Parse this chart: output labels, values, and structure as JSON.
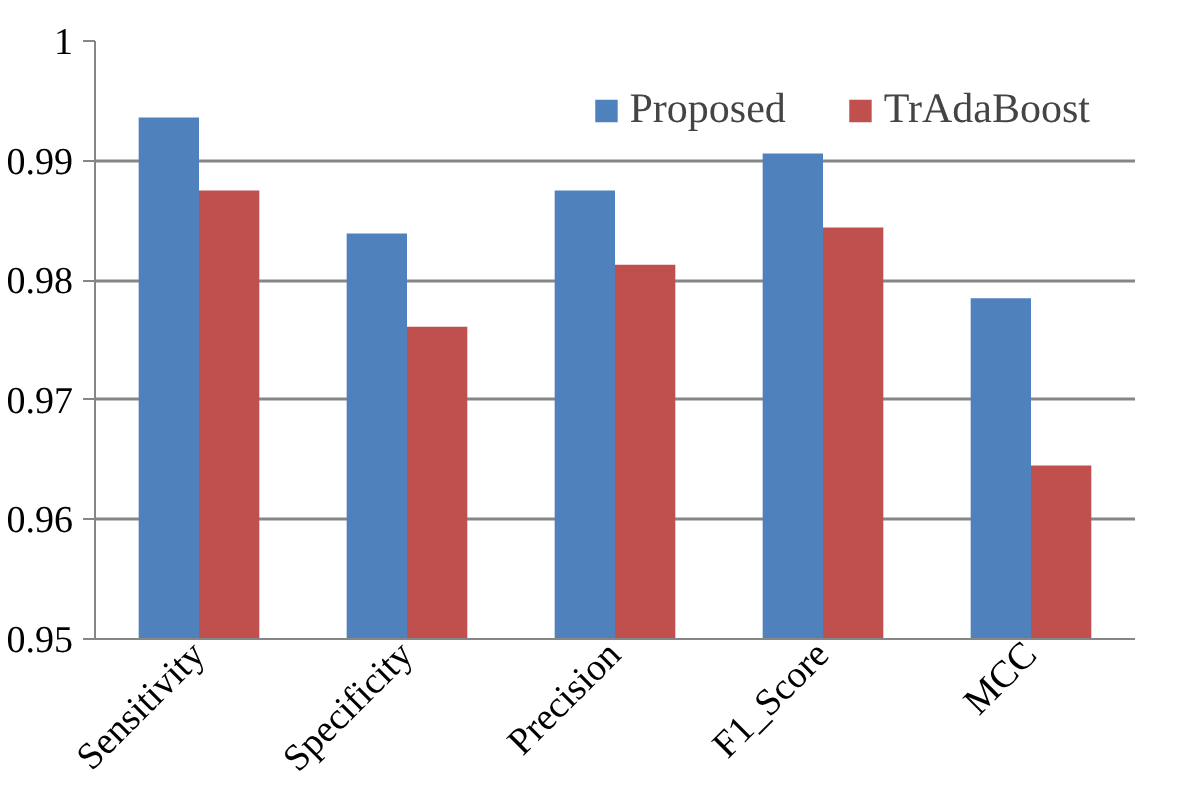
{
  "chart_data": {
    "type": "bar",
    "categories": [
      "Sensitivity",
      "Specificity",
      "Precision",
      "F1_Score",
      "MCC"
    ],
    "series": [
      {
        "name": "Proposed",
        "color": "#4f81bd",
        "values": [
          0.9936,
          0.9839,
          0.9875,
          0.9906,
          0.9785
        ]
      },
      {
        "name": "TrAdaBoost",
        "color": "#c0504d",
        "values": [
          0.9875,
          0.9761,
          0.9813,
          0.9844,
          0.9645
        ]
      }
    ],
    "ylim": [
      0.95,
      1
    ],
    "yticks": [
      0.95,
      0.96,
      0.97,
      0.98,
      0.99,
      {
        "value": 1,
        "label": "1"
      }
    ],
    "grid": "y",
    "legend": "top right"
  }
}
